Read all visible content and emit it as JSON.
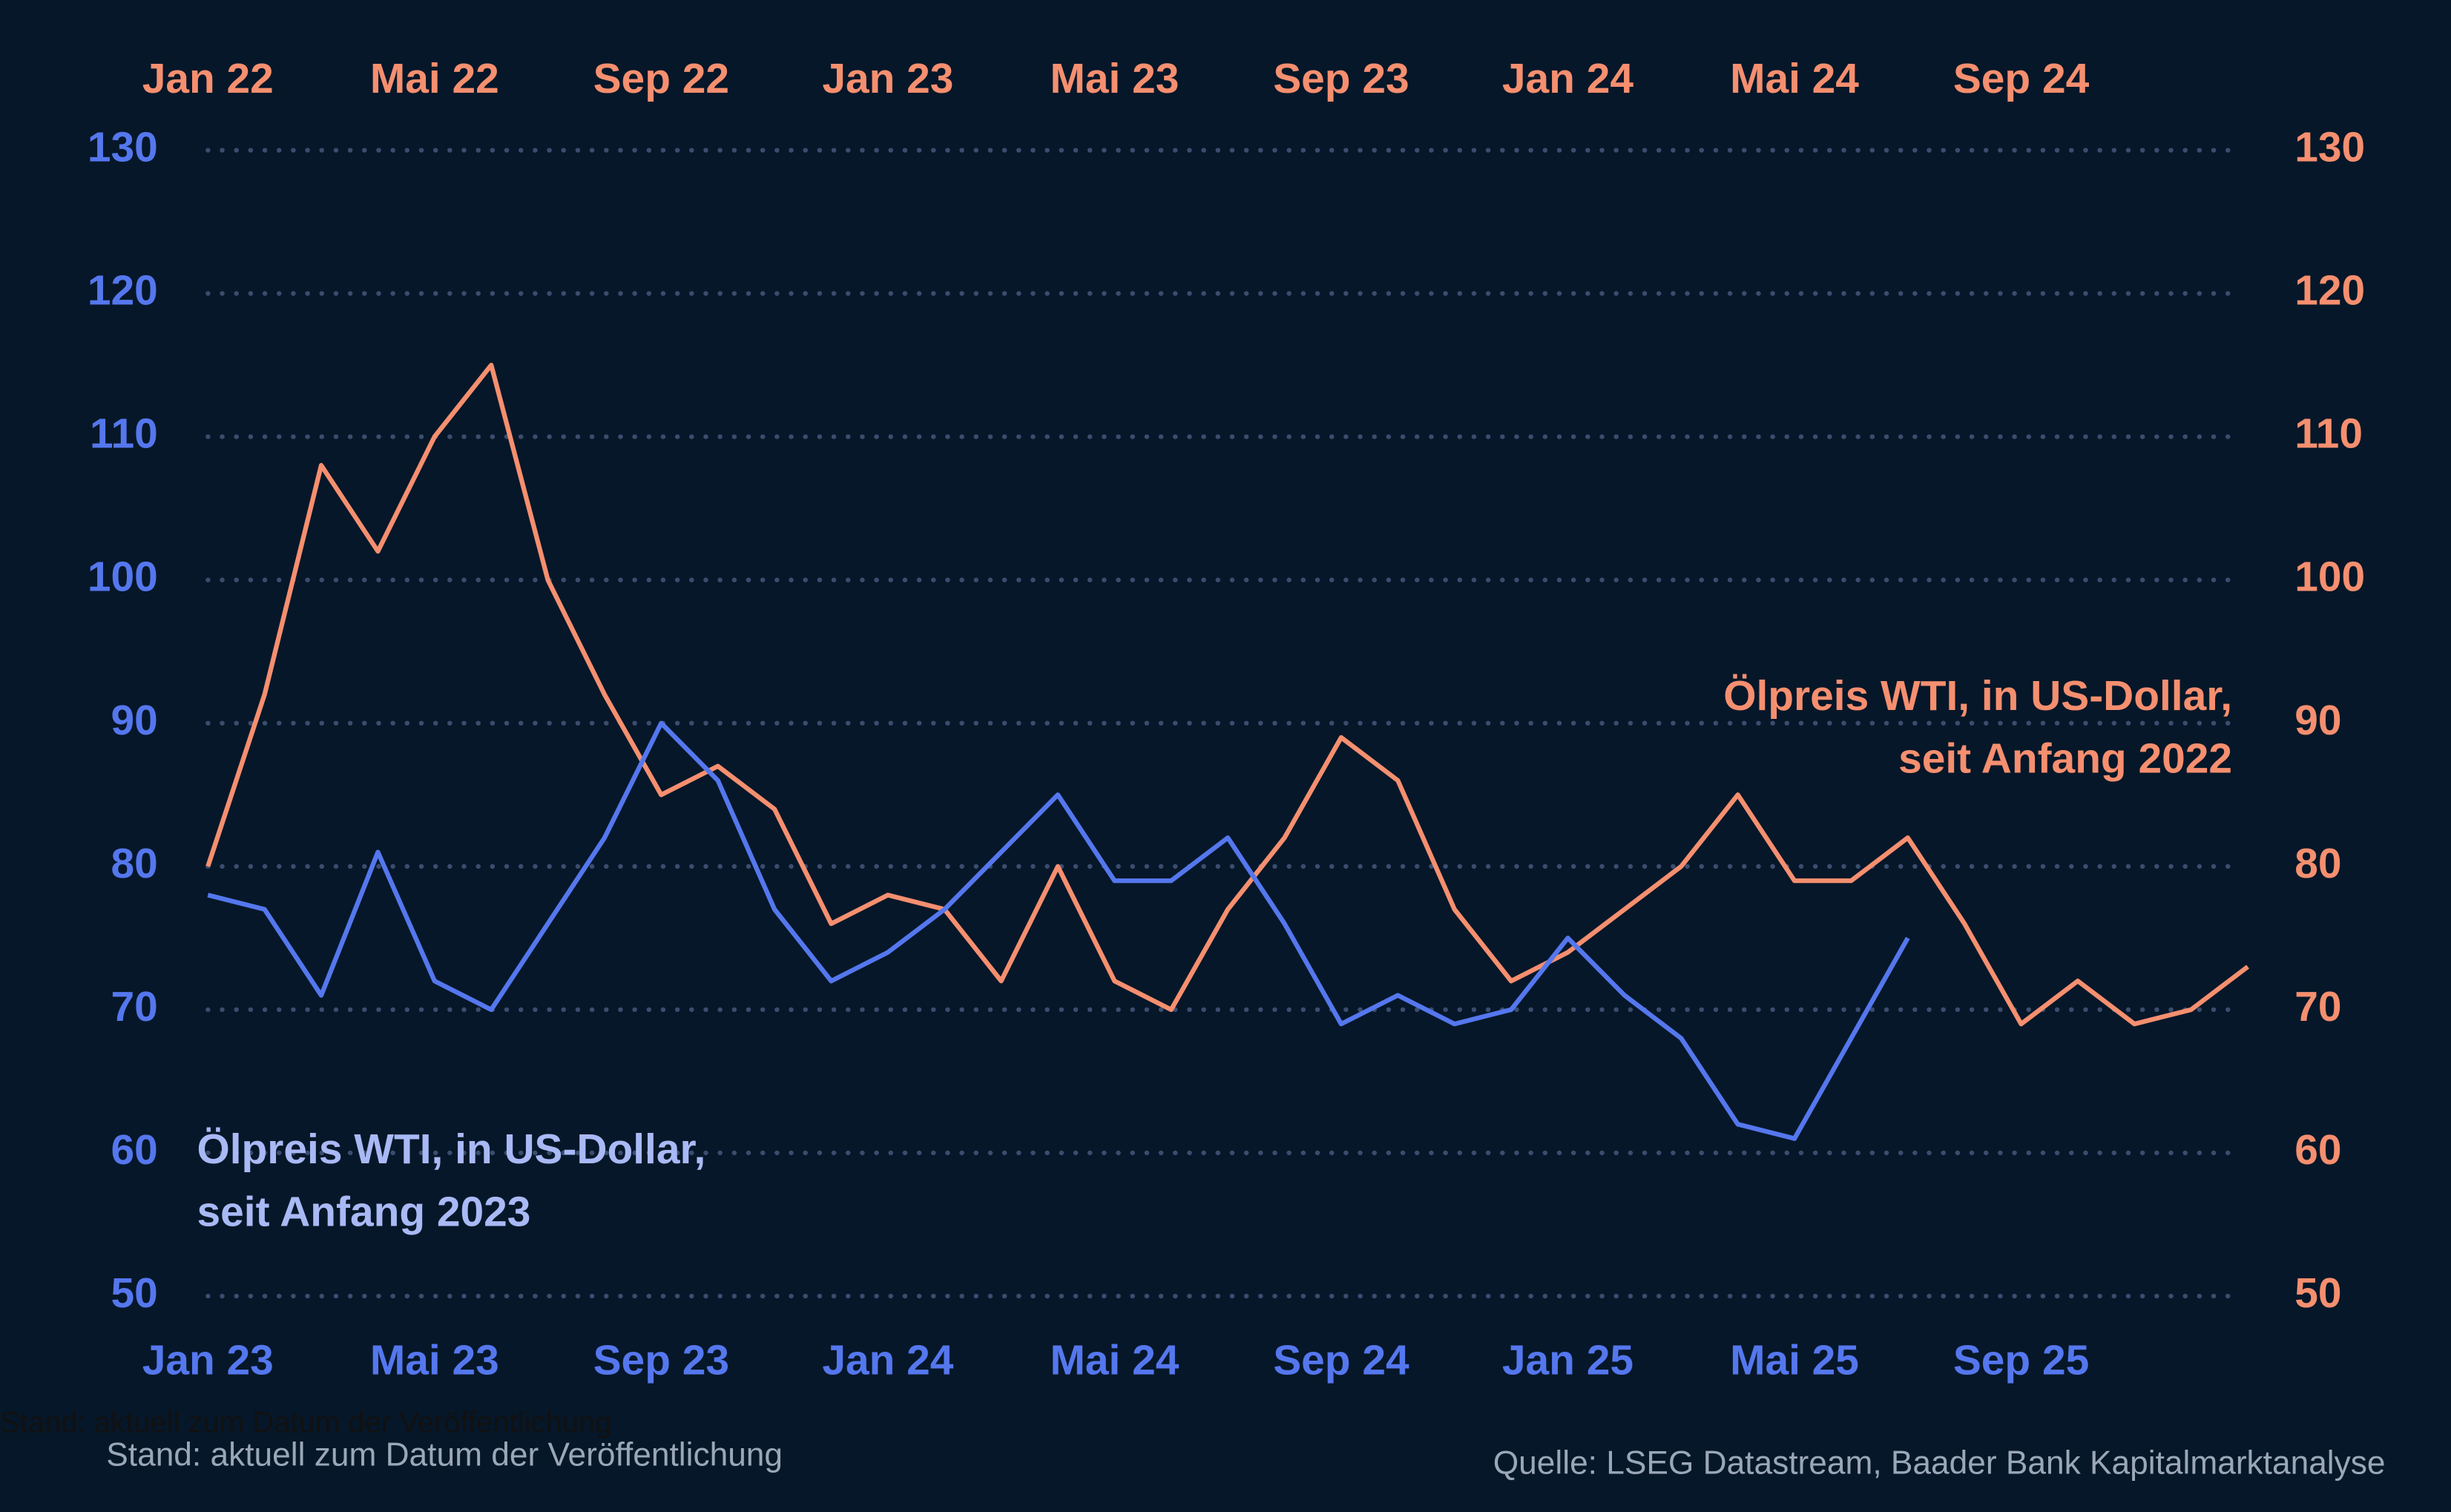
{
  "chart_data": {
    "type": "line",
    "notes": [
      "Stand: aktuell zum Datum der Veröffentlichung",
      "Stand: aktuell zum Datum der Veröffentlichung"
    ],
    "source": "Quelle: LSEG Datastream, Baader Bank Kapitalmarktanalyse",
    "ylim": [
      50,
      130
    ],
    "yticks": [
      50,
      60,
      70,
      80,
      90,
      100,
      110,
      120,
      130
    ],
    "y2lim": [
      50,
      130
    ],
    "y2ticks": [
      50,
      60,
      70,
      80,
      90,
      100,
      110,
      120,
      130
    ],
    "grid": true,
    "series": [
      {
        "name": "Ölpreis WTI, in US-Dollar, seit Anfang 2022",
        "annotation": [
          "Ölpreis WTI, in US-Dollar,",
          "seit Anfang 2022"
        ],
        "color": "#f58f6f",
        "axis": "y2",
        "x_axis": "top",
        "categories": [
          "Jan 22",
          null,
          null,
          null,
          "Mai 22",
          null,
          null,
          null,
          "Sep 22",
          null,
          null,
          null,
          "Jan 23",
          null,
          null,
          null,
          "Mai 23",
          null,
          null,
          null,
          "Sep 23",
          null,
          null,
          null,
          "Jan 24",
          null,
          null,
          null,
          "Mai 24",
          null,
          null,
          null,
          "Sep 24",
          null,
          null,
          null,
          null
        ],
        "values": [
          80,
          92,
          108,
          102,
          110,
          115,
          100,
          92,
          85,
          87,
          84,
          76,
          78,
          77,
          72,
          80,
          72,
          70,
          77,
          82,
          89,
          86,
          77,
          72,
          74,
          77,
          80,
          85,
          79,
          79,
          82,
          76,
          69,
          72,
          69,
          70,
          73
        ]
      },
      {
        "name": "Ölpreis WTI, in US-Dollar, seit Anfang 2023",
        "annotation": [
          "Ölpreis WTI, in US-Dollar,",
          "seit Anfang 2023"
        ],
        "color": "#5577ee",
        "axis": "y",
        "x_axis": "bottom",
        "categories": [
          "Jan 23",
          null,
          null,
          null,
          "Mai 23",
          null,
          null,
          null,
          "Sep 23",
          null,
          null,
          null,
          "Jan 24",
          null,
          null,
          null,
          "Mai 24",
          null,
          null,
          null,
          "Sep 24",
          null,
          null,
          null,
          "Jan 25",
          null,
          null,
          null,
          "Mai 25",
          null,
          null,
          null,
          "Sep 25",
          null,
          null,
          null,
          null
        ],
        "values": [
          78,
          77,
          71,
          81,
          72,
          70,
          76,
          82,
          90,
          86,
          77,
          72,
          74,
          77,
          81,
          85,
          79,
          79,
          82,
          76,
          69,
          71,
          69,
          70,
          75,
          71,
          68,
          62,
          61,
          68,
          75,
          null,
          null,
          null,
          null,
          null,
          null
        ]
      }
    ]
  }
}
